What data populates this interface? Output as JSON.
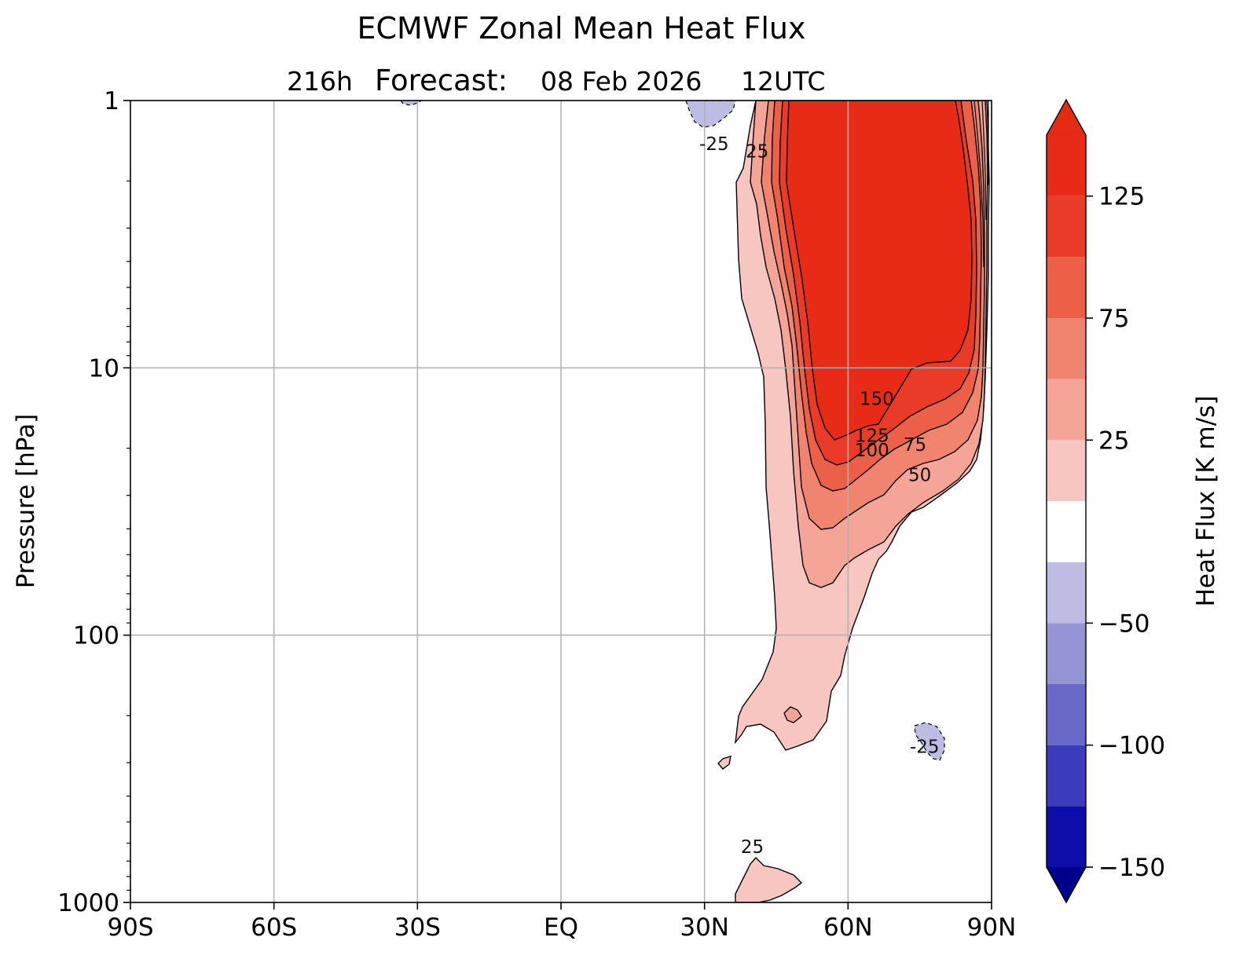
{
  "chart_data": {
    "type": "contour",
    "title": "ECMWF Zonal Mean Heat Flux",
    "subtitle": {
      "lead": "216h",
      "label": "Forecast:",
      "date": "08 Feb 2026",
      "time": "12UTC"
    },
    "xlabel": "",
    "ylabel": "Pressure [hPa]",
    "x_ticks": [
      {
        "value": -90,
        "label": "90S"
      },
      {
        "value": -60,
        "label": "60S"
      },
      {
        "value": -30,
        "label": "30S"
      },
      {
        "value": 0,
        "label": "EQ"
      },
      {
        "value": 30,
        "label": "30N"
      },
      {
        "value": 60,
        "label": "60N"
      },
      {
        "value": 90,
        "label": "90N"
      }
    ],
    "y_ticks": [
      {
        "value": 1,
        "label": "1"
      },
      {
        "value": 10,
        "label": "10"
      },
      {
        "value": 100,
        "label": "100"
      },
      {
        "value": 1000,
        "label": "1000"
      }
    ],
    "xlim": [
      -90,
      90
    ],
    "ylim": [
      1000,
      1
    ],
    "yscale": "log",
    "grid": true,
    "colorbar": {
      "label": "Heat Flux [K  m/s]",
      "ticks": [
        {
          "value": 125,
          "label": "125"
        },
        {
          "value": 75,
          "label": "75"
        },
        {
          "value": 25,
          "label": "25"
        },
        {
          "value": -50,
          "label": "−50"
        },
        {
          "value": -100,
          "label": "−100"
        },
        {
          "value": -150,
          "label": "−150"
        }
      ],
      "levels": [
        -150,
        -125,
        -100,
        -75,
        -50,
        -25,
        0,
        25,
        50,
        75,
        100,
        125,
        150
      ],
      "colors": [
        "#0d0da8",
        "#3b3bbd",
        "#6969c9",
        "#9595d6",
        "#bdbde4",
        "#ffffff",
        "#f8c6c0",
        "#f4a597",
        "#f0846f",
        "#ec6048",
        "#e93b27",
        "#e82b17"
      ],
      "under_color": "#00008b",
      "over_color": "#e52b13",
      "extend": "both"
    },
    "contour_labels": [
      {
        "text": "-25",
        "lat": 32,
        "p": 1.5
      },
      {
        "text": "25",
        "lat": 41,
        "p": 1.6
      },
      {
        "text": "150",
        "lat": 66,
        "p": 13.5
      },
      {
        "text": "125",
        "lat": 65,
        "p": 18.5
      },
      {
        "text": "100",
        "lat": 65,
        "p": 21
      },
      {
        "text": "75",
        "lat": 74,
        "p": 20
      },
      {
        "text": "50",
        "lat": 75,
        "p": 26
      },
      {
        "text": "-25",
        "lat": 76,
        "p": 270
      },
      {
        "text": "25",
        "lat": 40,
        "p": 640
      }
    ],
    "features": [
      {
        "name": "stratospheric positive heat flux maximum",
        "lat_range": [
          38,
          89
        ],
        "p_range": [
          1,
          180
        ],
        "peak": ">150"
      },
      {
        "name": "tropospheric positive lobe",
        "lat_range": [
          31,
          66
        ],
        "p_range": [
          100,
          290
        ],
        "value": "25-50"
      },
      {
        "name": "southern subtropical negative patch",
        "lat_range": [
          -33,
          -29
        ],
        "p_range": [
          1,
          1.1
        ],
        "value": "-25"
      },
      {
        "name": "northern subtropical negative patch",
        "lat_range": [
          27,
          36
        ],
        "p_range": [
          1,
          1.5
        ],
        "value": "-25"
      },
      {
        "name": "polar tropospheric negative patch",
        "lat_range": [
          74,
          80
        ],
        "p_range": [
          230,
          340
        ],
        "value": "-25"
      },
      {
        "name": "lower tropospheric positive patch",
        "lat_range": [
          37,
          51
        ],
        "p_range": [
          650,
          1000
        ],
        "value": "25"
      }
    ]
  }
}
